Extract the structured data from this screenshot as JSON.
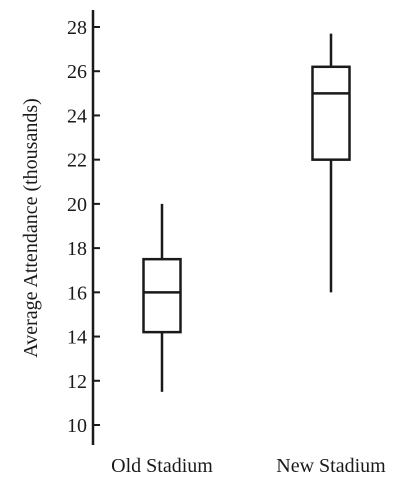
{
  "chart_data": {
    "type": "boxplot",
    "ylabel": "Average Attendance (thousands)",
    "ylim": [
      10,
      28
    ],
    "yticks": [
      10,
      12,
      14,
      16,
      18,
      20,
      22,
      24,
      26,
      28
    ],
    "categories": [
      "Old Stadium",
      "New Stadium"
    ],
    "boxes": [
      {
        "category": "Old Stadium",
        "min": 11.5,
        "q1": 14.2,
        "median": 16,
        "q3": 17.5,
        "max": 20
      },
      {
        "category": "New Stadium",
        "min": 16,
        "q1": 22,
        "median": 25,
        "q3": 26.2,
        "max": 27.7
      }
    ],
    "grid": false
  }
}
